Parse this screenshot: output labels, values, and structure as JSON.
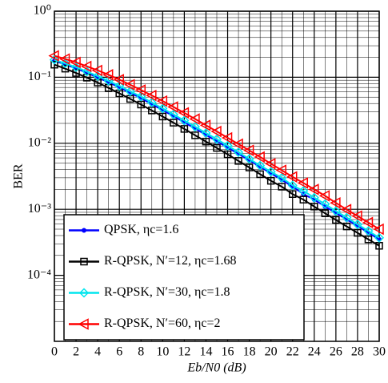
{
  "chart_data": {
    "type": "line",
    "ylabel": "BER",
    "xlabel": "Eb/N0 (dB)",
    "x": [
      0,
      1,
      2,
      3,
      4,
      5,
      6,
      7,
      8,
      9,
      10,
      11,
      12,
      13,
      14,
      15,
      16,
      17,
      18,
      19,
      20,
      21,
      22,
      23,
      24,
      25,
      26,
      27,
      28,
      29,
      30
    ],
    "xlim": [
      0,
      30
    ],
    "xticks": [
      0,
      2,
      4,
      6,
      8,
      10,
      12,
      14,
      16,
      18,
      20,
      22,
      24,
      26,
      28,
      30
    ],
    "ylim": [
      1e-05,
      1
    ],
    "log_y": true,
    "grid": true,
    "minor_grid": true,
    "legend": "lower left",
    "yticks": [
      {
        "value": 0.0001,
        "label": "10⁻⁴"
      },
      {
        "value": 0.001,
        "label": "10⁻³"
      },
      {
        "value": 0.01,
        "label": "10⁻²"
      },
      {
        "value": 0.1,
        "label": "10⁻¹"
      },
      {
        "value": 1,
        "label": "10⁰"
      }
    ],
    "series": [
      {
        "name": "QPSK, ηc=1.6",
        "color": "#0000ff",
        "marker": "dot",
        "values": [
          0.177,
          0.156,
          0.136,
          0.117,
          0.099,
          0.084,
          0.07,
          0.058,
          0.048,
          0.039,
          0.0317,
          0.0257,
          0.0207,
          0.0167,
          0.0134,
          0.0107,
          0.0086,
          0.0069,
          0.0055,
          0.0044,
          0.0035,
          0.0028,
          0.0022,
          0.0017,
          0.0014,
          0.0011,
          0.00088,
          0.0007,
          0.00056,
          0.00044,
          0.00035
        ]
      },
      {
        "name": "R-QPSK, N′=12, ηc=1.68",
        "color": "#000000",
        "marker": "square",
        "values": [
          0.155,
          0.135,
          0.116,
          0.0986,
          0.083,
          0.069,
          0.057,
          0.047,
          0.0386,
          0.0314,
          0.0254,
          0.0205,
          0.0165,
          0.0132,
          0.0106,
          0.0085,
          0.0068,
          0.0054,
          0.0043,
          0.0034,
          0.0027,
          0.0022,
          0.0017,
          0.0014,
          0.0011,
          0.00087,
          0.00069,
          0.00055,
          0.00044,
          0.00035,
          0.00028
        ]
      },
      {
        "name": "R-QPSK, N′=30, ηc=1.8",
        "color": "#00e5ee",
        "marker": "diamond",
        "values": [
          0.184,
          0.162,
          0.142,
          0.122,
          0.104,
          0.088,
          0.074,
          0.061,
          0.051,
          0.0414,
          0.0337,
          0.0273,
          0.0221,
          0.0178,
          0.0143,
          0.0115,
          0.0092,
          0.0073,
          0.0058,
          0.0046,
          0.0037,
          0.003,
          0.0023,
          0.0019,
          0.0015,
          0.0012,
          0.00094,
          0.00075,
          0.00059,
          0.00047,
          0.00037
        ]
      },
      {
        "name": "R-QPSK, N′=60, ηc=2",
        "color": "#ff0000",
        "marker": "triangle-left",
        "values": [
          0.2113,
          0.189,
          0.168,
          0.146,
          0.127,
          0.109,
          0.092,
          0.077,
          0.064,
          0.053,
          0.0436,
          0.0355,
          0.0289,
          0.0233,
          0.0187,
          0.0151,
          0.0121,
          0.0097,
          0.0078,
          0.0062,
          0.0049,
          0.0039,
          0.0031,
          0.0025,
          0.002,
          0.0016,
          0.00125,
          0.00099,
          0.00079,
          0.00063,
          0.0005
        ]
      }
    ]
  }
}
